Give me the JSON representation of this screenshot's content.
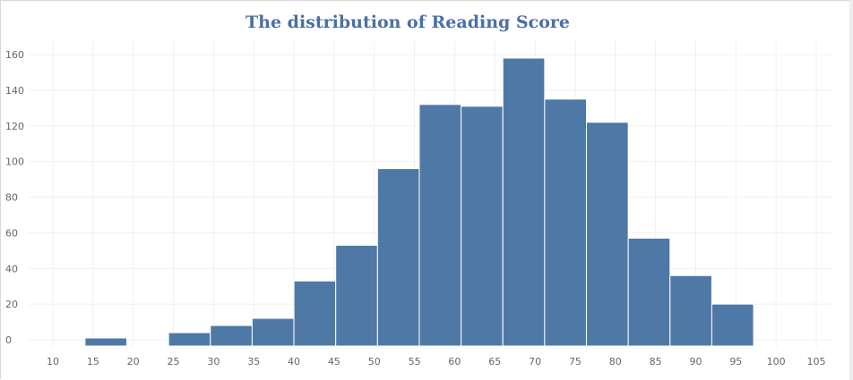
{
  "chart_data": {
    "type": "bar",
    "title": "The distribution of Reading Score",
    "xlabel": "",
    "ylabel": "",
    "bin_width": 5.2,
    "bins": [
      {
        "x0": 14.0,
        "x1": 19.2,
        "value": 1
      },
      {
        "x0": 19.2,
        "x1": 24.4,
        "value": 0
      },
      {
        "x0": 24.4,
        "x1": 29.6,
        "value": 4
      },
      {
        "x0": 29.6,
        "x1": 34.8,
        "value": 8
      },
      {
        "x0": 34.8,
        "x1": 40.0,
        "value": 12
      },
      {
        "x0": 40.0,
        "x1": 45.2,
        "value": 33
      },
      {
        "x0": 45.2,
        "x1": 50.4,
        "value": 53
      },
      {
        "x0": 50.4,
        "x1": 55.6,
        "value": 96
      },
      {
        "x0": 55.6,
        "x1": 60.8,
        "value": 132
      },
      {
        "x0": 60.8,
        "x1": 66.0,
        "value": 131
      },
      {
        "x0": 66.0,
        "x1": 71.2,
        "value": 158
      },
      {
        "x0": 71.2,
        "x1": 76.4,
        "value": 135
      },
      {
        "x0": 76.4,
        "x1": 81.6,
        "value": 122
      },
      {
        "x0": 81.6,
        "x1": 86.8,
        "value": 57
      },
      {
        "x0": 86.8,
        "x1": 92.0,
        "value": 36
      },
      {
        "x0": 92.0,
        "x1": 97.2,
        "value": 20
      }
    ],
    "xlim": [
      7,
      107
    ],
    "ylim": [
      -4,
      166
    ],
    "x_ticks": [
      10,
      15,
      20,
      25,
      30,
      35,
      40,
      45,
      50,
      55,
      60,
      65,
      70,
      75,
      80,
      85,
      90,
      95,
      100,
      105
    ],
    "y_ticks": [
      0,
      20,
      40,
      60,
      80,
      100,
      120,
      140,
      160
    ],
    "grid": true,
    "legend": "none",
    "bar_color": "#4e79a7",
    "grid_color": "#f0f0f0"
  }
}
